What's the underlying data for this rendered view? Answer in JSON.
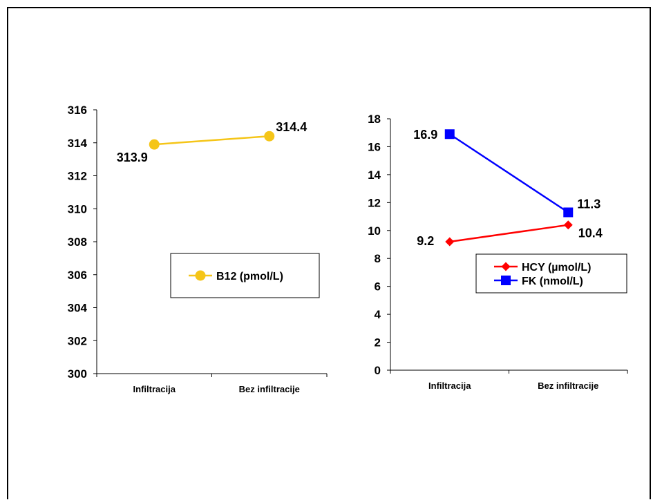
{
  "chart_data": [
    {
      "type": "line",
      "categories": [
        "Infiltracija",
        "Bez infiltracije"
      ],
      "ylim": [
        300,
        316
      ],
      "yticks": [
        300,
        302,
        304,
        306,
        308,
        310,
        312,
        314,
        316
      ],
      "grid": false,
      "legend_position": "center-right",
      "series": [
        {
          "name": "B12 (pmol/L)",
          "values": [
            313.9,
            314.4
          ],
          "labels": [
            "313.9",
            "314.4"
          ],
          "color": "#F5C518",
          "marker": "circle"
        }
      ]
    },
    {
      "type": "line",
      "categories": [
        "Infiltracija",
        "Bez infiltracije"
      ],
      "ylim": [
        0,
        18
      ],
      "yticks": [
        0,
        2,
        4,
        6,
        8,
        10,
        12,
        14,
        16,
        18
      ],
      "grid": false,
      "legend_position": "right",
      "series": [
        {
          "name": "HCY (µmol/L)",
          "values": [
            9.2,
            10.4
          ],
          "labels": [
            "9.2",
            "10.4"
          ],
          "color": "#FF0000",
          "marker": "diamond"
        },
        {
          "name": "FK (nmol/L)",
          "values": [
            16.9,
            11.3
          ],
          "labels": [
            "16.9",
            "11.3"
          ],
          "color": "#0000FF",
          "marker": "square"
        }
      ]
    }
  ]
}
